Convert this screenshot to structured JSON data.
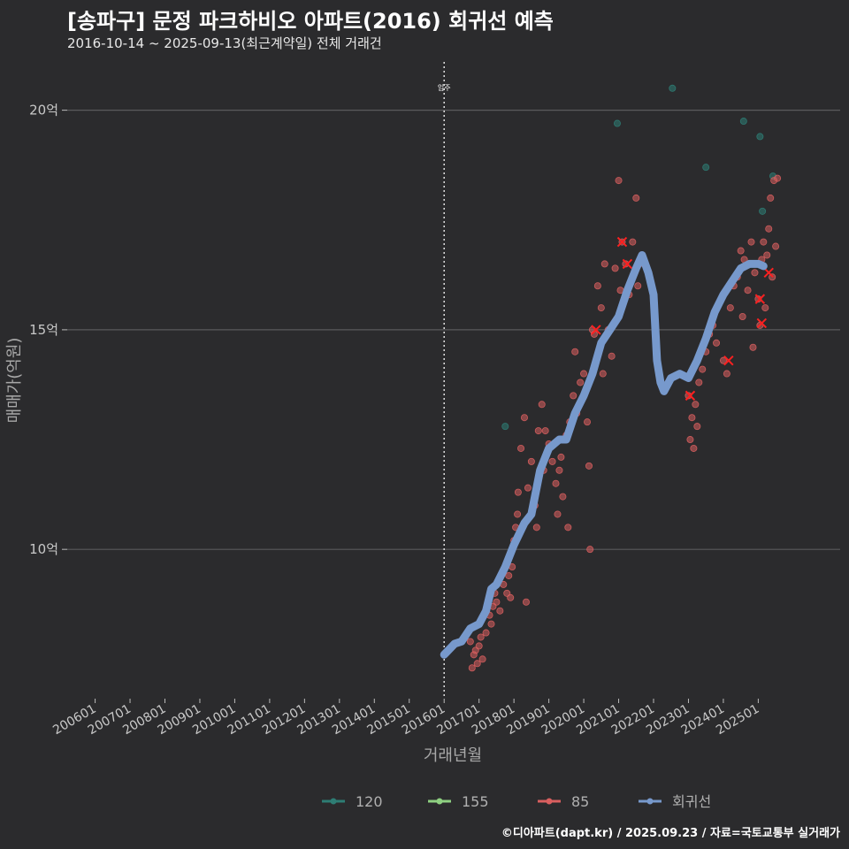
{
  "header": {
    "title": "[송파구] 문정 파크하비오 아파트(2016) 회귀선 예측",
    "subtitle": "2016-10-14 ~ 2025-09-13(최근계약일) 전체 거래건"
  },
  "caption": "©디아파트(dapt.kr) / 2025.09.23 / 자료=국토교통부 실거래가",
  "chart_data": {
    "type": "scatter",
    "xlabel": "거래년월",
    "ylabel": "매매가(억원)",
    "x_ticks": [
      "200601",
      "200701",
      "200801",
      "200901",
      "201001",
      "201101",
      "201201",
      "201301",
      "201401",
      "201501",
      "201601",
      "201701",
      "201801",
      "201901",
      "202001",
      "202101",
      "202201",
      "202301",
      "202401",
      "202501"
    ],
    "y_ticks": [
      10,
      15,
      20
    ],
    "y_tick_labels": [
      "10억",
      "15억",
      "20억"
    ],
    "xlim": [
      2005.2,
      2027.6
    ],
    "ylim": [
      6.6,
      21.1
    ],
    "grid": true,
    "legend_position": "bottom",
    "vline": {
      "x": 2016.0,
      "label": "입주"
    },
    "legend": [
      {
        "name": "120",
        "color": "#2e7d74"
      },
      {
        "name": "155",
        "color": "#8ed081"
      },
      {
        "name": "85",
        "color": "#d95f5f"
      },
      {
        "name": "회귀선",
        "color": "#7799cc"
      }
    ],
    "series": [
      {
        "name": "120",
        "points": [
          [
            2017.75,
            12.8
          ],
          [
            2020.96,
            19.7
          ],
          [
            2022.54,
            20.5
          ],
          [
            2023.5,
            18.7
          ],
          [
            2024.58,
            19.75
          ],
          [
            2025.05,
            19.4
          ],
          [
            2025.12,
            17.7
          ],
          [
            2025.42,
            18.5
          ]
        ]
      },
      {
        "name": "155",
        "points": []
      },
      {
        "name": "85",
        "points": [
          [
            2016.75,
            7.9
          ],
          [
            2016.8,
            7.3
          ],
          [
            2016.85,
            7.6
          ],
          [
            2016.9,
            7.7
          ],
          [
            2016.95,
            7.4
          ],
          [
            2017.0,
            7.8
          ],
          [
            2017.05,
            8.0
          ],
          [
            2017.1,
            7.5
          ],
          [
            2017.2,
            8.1
          ],
          [
            2017.3,
            8.5
          ],
          [
            2017.35,
            8.3
          ],
          [
            2017.4,
            8.7
          ],
          [
            2017.45,
            9.0
          ],
          [
            2017.5,
            8.8
          ],
          [
            2017.6,
            8.6
          ],
          [
            2017.7,
            9.2
          ],
          [
            2017.8,
            9.0
          ],
          [
            2017.85,
            9.4
          ],
          [
            2017.9,
            8.9
          ],
          [
            2017.95,
            9.6
          ],
          [
            2018.0,
            10.2
          ],
          [
            2018.05,
            10.5
          ],
          [
            2018.1,
            10.8
          ],
          [
            2018.12,
            11.3
          ],
          [
            2018.2,
            12.3
          ],
          [
            2018.3,
            13.0
          ],
          [
            2018.35,
            8.8
          ],
          [
            2018.4,
            11.4
          ],
          [
            2018.5,
            12.0
          ],
          [
            2018.6,
            11.0
          ],
          [
            2018.65,
            10.5
          ],
          [
            2018.7,
            12.7
          ],
          [
            2018.8,
            13.3
          ],
          [
            2018.85,
            11.8
          ],
          [
            2018.9,
            12.7
          ],
          [
            2019.0,
            12.4
          ],
          [
            2019.1,
            12.0
          ],
          [
            2019.2,
            11.5
          ],
          [
            2019.25,
            10.8
          ],
          [
            2019.3,
            11.8
          ],
          [
            2019.35,
            12.1
          ],
          [
            2019.4,
            11.2
          ],
          [
            2019.5,
            12.6
          ],
          [
            2019.55,
            10.5
          ],
          [
            2019.6,
            12.9
          ],
          [
            2019.7,
            13.5
          ],
          [
            2019.75,
            14.5
          ],
          [
            2019.8,
            13.1
          ],
          [
            2019.9,
            13.8
          ],
          [
            2020.0,
            14.0
          ],
          [
            2020.1,
            12.9
          ],
          [
            2020.15,
            11.9
          ],
          [
            2020.18,
            10.0
          ],
          [
            2020.25,
            15.0
          ],
          [
            2020.3,
            14.9
          ],
          [
            2020.4,
            16.0
          ],
          [
            2020.5,
            15.5
          ],
          [
            2020.55,
            14.0
          ],
          [
            2020.6,
            16.5
          ],
          [
            2020.7,
            15.0
          ],
          [
            2020.8,
            14.4
          ],
          [
            2020.9,
            16.4
          ],
          [
            2021.0,
            18.4
          ],
          [
            2021.05,
            15.9
          ],
          [
            2021.1,
            17.0
          ],
          [
            2021.2,
            16.5
          ],
          [
            2021.3,
            15.8
          ],
          [
            2021.4,
            17.0
          ],
          [
            2021.5,
            18.0
          ],
          [
            2021.55,
            16.0
          ],
          [
            2021.6,
            16.5
          ],
          [
            2023.0,
            13.5
          ],
          [
            2023.05,
            12.5
          ],
          [
            2023.1,
            13.0
          ],
          [
            2023.15,
            12.3
          ],
          [
            2023.2,
            13.3
          ],
          [
            2023.25,
            12.8
          ],
          [
            2023.3,
            13.8
          ],
          [
            2023.4,
            14.1
          ],
          [
            2023.5,
            14.5
          ],
          [
            2023.6,
            14.9
          ],
          [
            2023.7,
            15.1
          ],
          [
            2023.8,
            14.7
          ],
          [
            2024.0,
            14.3
          ],
          [
            2024.1,
            14.0
          ],
          [
            2024.2,
            15.5
          ],
          [
            2024.3,
            16.0
          ],
          [
            2024.4,
            16.2
          ],
          [
            2024.5,
            16.8
          ],
          [
            2024.55,
            15.3
          ],
          [
            2024.6,
            16.6
          ],
          [
            2024.7,
            15.9
          ],
          [
            2024.8,
            17.0
          ],
          [
            2024.85,
            14.6
          ],
          [
            2024.9,
            16.3
          ],
          [
            2025.0,
            15.7
          ],
          [
            2025.05,
            15.1
          ],
          [
            2025.1,
            16.6
          ],
          [
            2025.15,
            17.0
          ],
          [
            2025.2,
            15.5
          ],
          [
            2025.25,
            16.7
          ],
          [
            2025.3,
            17.3
          ],
          [
            2025.35,
            18.0
          ],
          [
            2025.4,
            16.2
          ],
          [
            2025.45,
            18.4
          ],
          [
            2025.5,
            16.9
          ],
          [
            2025.55,
            18.45
          ]
        ]
      },
      {
        "name": "회귀선",
        "points": [
          [
            2016.0,
            7.6
          ],
          [
            2016.3,
            7.85
          ],
          [
            2016.5,
            7.9
          ],
          [
            2016.75,
            8.2
          ],
          [
            2017.0,
            8.3
          ],
          [
            2017.2,
            8.6
          ],
          [
            2017.35,
            9.1
          ],
          [
            2017.5,
            9.2
          ],
          [
            2017.75,
            9.6
          ],
          [
            2018.0,
            10.1
          ],
          [
            2018.3,
            10.6
          ],
          [
            2018.5,
            10.8
          ],
          [
            2018.75,
            11.8
          ],
          [
            2019.0,
            12.3
          ],
          [
            2019.3,
            12.5
          ],
          [
            2019.5,
            12.5
          ],
          [
            2019.75,
            13.1
          ],
          [
            2020.0,
            13.5
          ],
          [
            2020.25,
            14.0
          ],
          [
            2020.5,
            14.7
          ],
          [
            2020.75,
            15.0
          ],
          [
            2021.0,
            15.3
          ],
          [
            2021.25,
            15.9
          ],
          [
            2021.5,
            16.4
          ],
          [
            2021.67,
            16.7
          ],
          [
            2021.85,
            16.3
          ],
          [
            2022.0,
            15.8
          ],
          [
            2022.1,
            14.3
          ],
          [
            2022.2,
            13.8
          ],
          [
            2022.3,
            13.6
          ],
          [
            2022.5,
            13.9
          ],
          [
            2022.75,
            14.0
          ],
          [
            2023.0,
            13.9
          ],
          [
            2023.25,
            14.3
          ],
          [
            2023.5,
            14.8
          ],
          [
            2023.75,
            15.4
          ],
          [
            2024.0,
            15.8
          ],
          [
            2024.25,
            16.1
          ],
          [
            2024.5,
            16.4
          ],
          [
            2024.75,
            16.5
          ],
          [
            2025.0,
            16.5
          ],
          [
            2025.15,
            16.45
          ]
        ]
      }
    ],
    "highlights": [
      [
        2021.1,
        17.0
      ],
      [
        2021.25,
        16.5
      ],
      [
        2020.35,
        15.0
      ],
      [
        2023.05,
        13.5
      ],
      [
        2024.15,
        14.3
      ],
      [
        2025.05,
        15.7
      ],
      [
        2025.1,
        15.15
      ],
      [
        2025.3,
        16.3
      ]
    ]
  }
}
